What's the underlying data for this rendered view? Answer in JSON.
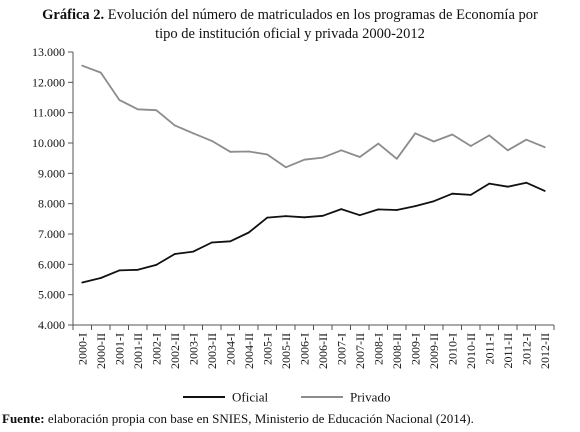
{
  "title": {
    "label": "Gráfica 2.",
    "line1": "Evolución del número de matriculados en los programas de Economía por",
    "line2": "tipo de institución oficial y privada 2000-2012"
  },
  "source": {
    "label": "Fuente:",
    "text": "elaboración propia con base en SNIES, Ministerio de Educación Nacional (2014)."
  },
  "chart_data": {
    "type": "line",
    "title": "Evolución del número de matriculados en los programas de Economía por tipo de institución oficial y privada 2000-2012",
    "xlabel": "",
    "ylabel": "",
    "ylim": [
      4000,
      13000
    ],
    "yticks": [
      4000,
      5000,
      6000,
      7000,
      8000,
      9000,
      10000,
      11000,
      12000,
      13000
    ],
    "ytick_labels": [
      "4.000",
      "5.000",
      "6.000",
      "7.000",
      "8.000",
      "9.000",
      "10.000",
      "11.000",
      "12.000",
      "13.000"
    ],
    "grid": false,
    "legend_position": "bottom",
    "x": [
      "2000-I",
      "2000-II",
      "2001-I",
      "2001-II",
      "2002-I",
      "2002-II",
      "2003-I",
      "2003-II",
      "2004-I",
      "2004-II",
      "2005-I",
      "2005-II",
      "2006-I",
      "2006-II",
      "2007-I",
      "2007-II",
      "2008-I",
      "2008-II",
      "2009-I",
      "2009-II",
      "2010-I",
      "2010-II",
      "2011-I",
      "2011-II",
      "2012-I",
      "2012-II"
    ],
    "series": [
      {
        "name": "Oficial",
        "color": "#111111",
        "values": [
          5400,
          5550,
          5800,
          5820,
          5980,
          6340,
          6420,
          6720,
          6760,
          7050,
          7540,
          7590,
          7550,
          7600,
          7820,
          7620,
          7810,
          7790,
          7920,
          8080,
          8330,
          8290,
          8660,
          8560,
          8690,
          8420
        ]
      },
      {
        "name": "Privado",
        "color": "#8c8c8c",
        "values": [
          12550,
          12320,
          11420,
          11110,
          11080,
          10580,
          10320,
          10070,
          9710,
          9720,
          9620,
          9200,
          9450,
          9520,
          9760,
          9540,
          9980,
          9480,
          10320,
          10050,
          10280,
          9900,
          10250,
          9760,
          10110,
          9860
        ]
      }
    ]
  }
}
